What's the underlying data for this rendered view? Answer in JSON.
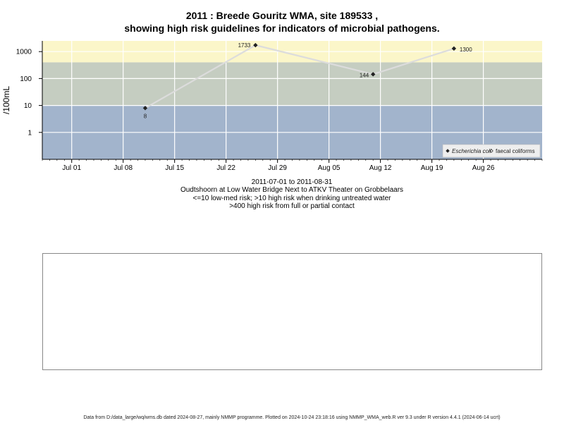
{
  "titles": {
    "line1": "2011 : Breede Gouritz WMA, site 189533 ,",
    "line2": "showing high risk guidelines for indicators of microbial pathogens."
  },
  "subtitles": {
    "date_range": "2011-07-01 to 2011-08-31",
    "site": "Oudtshoorn at Low Water Bridge Next to ATKV Theater on Grobbelaars",
    "guide_low": "<=10 low-med risk; >10 high risk when drinking untreated water",
    "guide_high": ">400 high risk from full or partial contact"
  },
  "footer": "Data from D:/data_large/wq/wms.db dated 2024-08-27, mainly NMMP programme. Plotted on 2024-10-24 23:18:16 using NMMP_WMA_web.R ver 9.3 under R version 4.4.1 (2024-06-14 ucrt)",
  "colors": {
    "band_low": "#a2b4cc",
    "band_mid": "#c5cdc1",
    "band_high": "#fbf6c9",
    "line": "#dcdcdc",
    "marker": "#222222",
    "grid": "#ffffff"
  },
  "chart_data": {
    "type": "line",
    "title": "2011 : Breede Gouritz WMA, site 189533 , showing high risk guidelines for indicators of microbial pathogens.",
    "xlabel": "",
    "ylabel": "/100mL",
    "y_scale": "log10",
    "xlim": [
      "2011-06-27",
      "2011-09-03"
    ],
    "ylim": [
      0.1,
      2500
    ],
    "x_ticks": [
      "2011-07-01",
      "2011-07-08",
      "2011-07-15",
      "2011-07-22",
      "2011-07-29",
      "2011-08-05",
      "2011-08-12",
      "2011-08-19",
      "2011-08-26"
    ],
    "x_tick_labels": [
      "Jul 01",
      "Jul 08",
      "Jul 15",
      "Jul 22",
      "Jul 29",
      "Aug 05",
      "Aug 12",
      "Aug 19",
      "Aug 26"
    ],
    "y_ticks": [
      1,
      10,
      100,
      1000
    ],
    "y_tick_labels": [
      "1",
      "10",
      "100",
      "1000"
    ],
    "bands": [
      {
        "from": 0.1,
        "to": 10,
        "color": "#a2b4cc"
      },
      {
        "from": 10,
        "to": 400,
        "color": "#c5cdc1"
      },
      {
        "from": 400,
        "to": 2500,
        "color": "#fbf6c9"
      }
    ],
    "series": [
      {
        "name": "Escherichia coli",
        "marker": "filled-diamond",
        "points": [
          {
            "x": "2011-07-11",
            "y": 8,
            "label": "8"
          },
          {
            "x": "2011-07-26",
            "y": 1733,
            "label": "1733"
          },
          {
            "x": "2011-08-11",
            "y": 144,
            "label": "144"
          },
          {
            "x": "2011-08-22",
            "y": 1300,
            "label": "1300"
          }
        ]
      }
    ],
    "legend": {
      "position": "bottom-right",
      "entries": [
        {
          "label": "Escherichia coli",
          "marker": "filled-diamond"
        },
        {
          "label": "faecal coliforms",
          "marker": "open-diamond"
        }
      ]
    },
    "grid": true
  }
}
